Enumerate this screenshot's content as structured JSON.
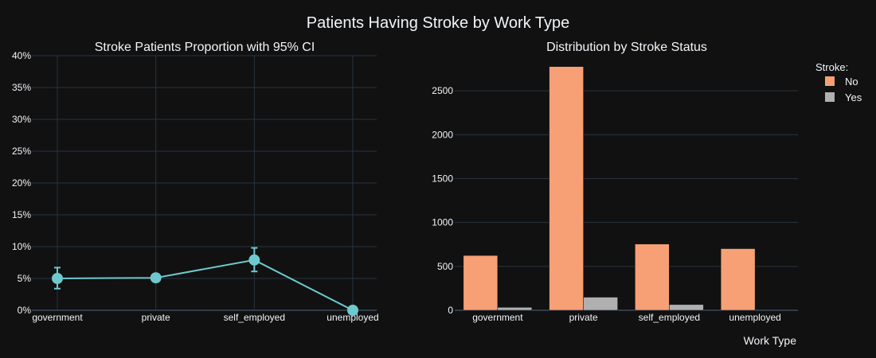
{
  "title": "Patients Having Stroke by Work Type",
  "colors": {
    "background": "#111111",
    "grid": "#283442",
    "axis_line": "#506784",
    "line": "#6ec9cf",
    "bar_no": "#f7a075",
    "bar_yes": "#b0b0b0"
  },
  "chart_data": [
    {
      "type": "line",
      "title": "Stroke Patients Proportion with 95% CI",
      "categories": [
        "government",
        "private",
        "self_employed",
        "unemployed"
      ],
      "values": [
        0.05,
        0.051,
        0.079,
        0.0
      ],
      "error_low": [
        0.034,
        0.045,
        0.061,
        0.0
      ],
      "error_high": [
        0.067,
        0.057,
        0.098,
        0.0
      ],
      "ylim": [
        0,
        0.4
      ],
      "yticks": [
        "0%",
        "5%",
        "10%",
        "15%",
        "20%",
        "25%",
        "30%",
        "35%",
        "40%"
      ],
      "xlabel": "",
      "ylabel": ""
    },
    {
      "type": "bar",
      "title": "Distribution by Stroke Status",
      "categories": [
        "government",
        "private",
        "self_employed",
        "unemployed"
      ],
      "series": [
        {
          "name": "No",
          "values": [
            624,
            2776,
            754,
            702
          ]
        },
        {
          "name": "Yes",
          "values": [
            33,
            149,
            65,
            0
          ]
        }
      ],
      "ylim": [
        0,
        2900
      ],
      "yticks": [
        "0",
        "500",
        "1000",
        "1500",
        "2000",
        "2500"
      ],
      "xlabel": "Work Type",
      "ylabel": "",
      "legend_title": "Stroke:",
      "legend_position": "top-right"
    }
  ]
}
